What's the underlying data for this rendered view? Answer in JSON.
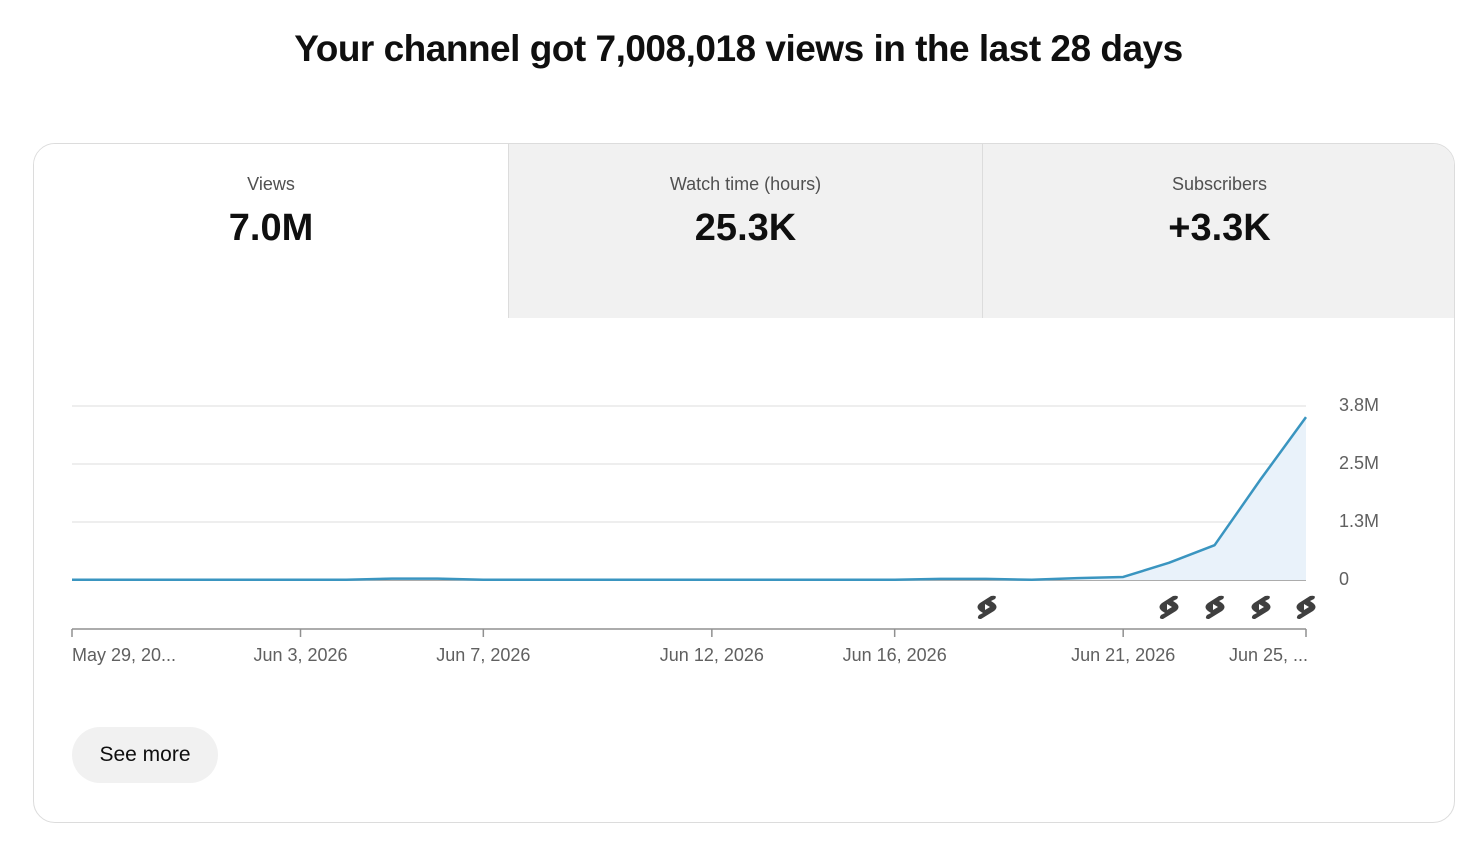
{
  "header": {
    "title": "Your channel got 7,008,018 views in the last 28 days"
  },
  "tabs": [
    {
      "label": "Views",
      "value": "7.0M"
    },
    {
      "label": "Watch time (hours)",
      "value": "25.3K"
    },
    {
      "label": "Subscribers",
      "value": "+3.3K"
    }
  ],
  "chart_data": {
    "type": "line",
    "categories": [
      "May 29, 20...",
      null,
      null,
      null,
      null,
      "Jun 3, 2026",
      null,
      null,
      null,
      "Jun 7, 2026",
      null,
      null,
      null,
      null,
      "Jun 12, 2026",
      null,
      null,
      null,
      "Jun 16, 2026",
      null,
      null,
      null,
      null,
      "Jun 21, 2026",
      null,
      null,
      null,
      "Jun 25, ..."
    ],
    "values": [
      5000,
      5000,
      5000,
      5000,
      5000,
      5000,
      5000,
      30000,
      30000,
      5000,
      5000,
      5000,
      5000,
      5000,
      5000,
      5000,
      5000,
      5000,
      5000,
      25000,
      25000,
      5000,
      40000,
      65000,
      370000,
      750000,
      2160000,
      3510000
    ],
    "color": "#3a95c0",
    "ylim": [
      0,
      3750000
    ],
    "yticks": [
      0,
      {
        "value": 1250000,
        "label": "1.3M"
      },
      {
        "value": 2500000,
        "label": "2.5M"
      },
      {
        "value": 3750000,
        "label": "3.8M"
      }
    ],
    "grid": true
  },
  "button": {
    "label": "See more"
  }
}
